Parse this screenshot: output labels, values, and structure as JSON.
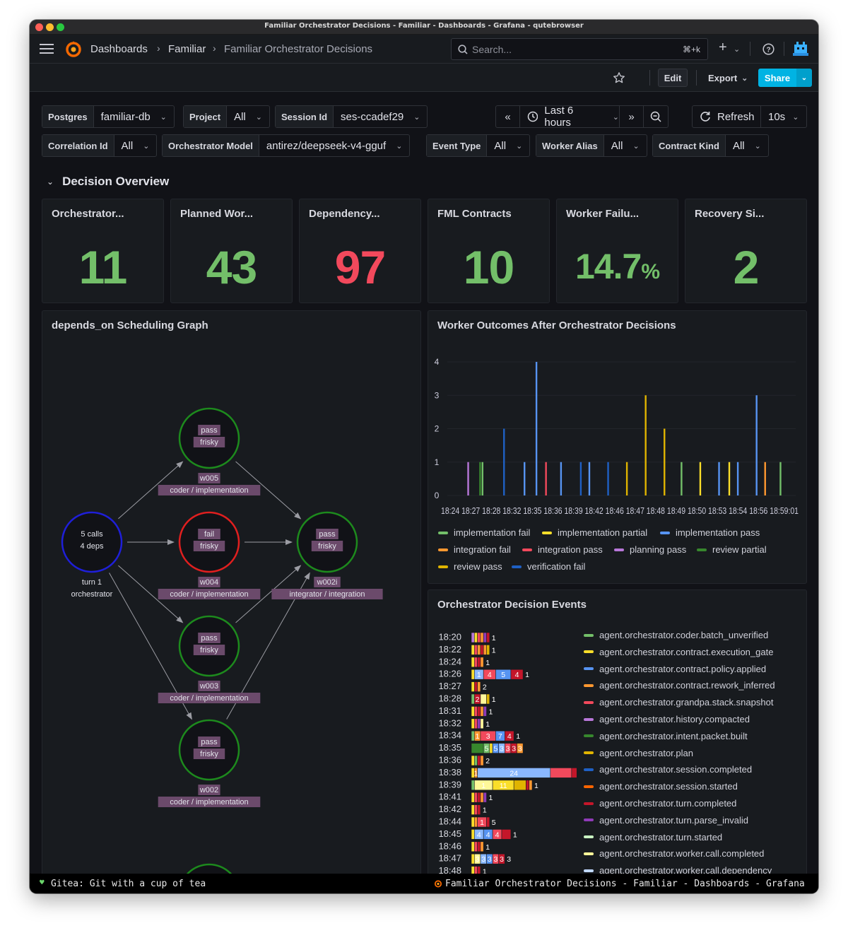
{
  "window": {
    "title": "Familiar Orchestrator Decisions - Familiar - Dashboards - Grafana - qutebrowser"
  },
  "nav": {
    "breadcrumbs": [
      "Dashboards",
      "Familiar",
      "Familiar Orchestrator Decisions"
    ],
    "search_placeholder": "Search...",
    "search_shortcut": "⌘+k",
    "plus": "+"
  },
  "toolbar": {
    "edit": "Edit",
    "export": "Export",
    "share": "Share"
  },
  "variables": [
    {
      "label": "Postgres",
      "value": "familiar-db"
    },
    {
      "label": "Project",
      "value": "All"
    },
    {
      "label": "Session Id",
      "value": "ses-ccadef29"
    },
    {
      "label": "Correlation Id",
      "value": "All"
    },
    {
      "label": "Orchestrator Model",
      "value": "antirez/deepseek-v4-gguf"
    },
    {
      "label": "Event Type",
      "value": "All"
    },
    {
      "label": "Worker Alias",
      "value": "All"
    },
    {
      "label": "Contract Kind",
      "value": "All"
    }
  ],
  "time": {
    "range": "Last 6 hours",
    "refresh": "Refresh",
    "interval": "10s"
  },
  "row_title": "Decision Overview",
  "stats": [
    {
      "title": "Orchestrator...",
      "value": "11",
      "unit": "",
      "color": "#73bf69"
    },
    {
      "title": "Planned Wor...",
      "value": "43",
      "unit": "",
      "color": "#73bf69"
    },
    {
      "title": "Dependency...",
      "value": "97",
      "unit": "",
      "color": "#f2495c"
    },
    {
      "title": "FML Contracts",
      "value": "10",
      "unit": "",
      "color": "#73bf69"
    },
    {
      "title": "Worker Failu...",
      "value": "14.7",
      "unit": "%",
      "color": "#73bf69"
    },
    {
      "title": "Recovery Si...",
      "value": "2",
      "unit": "",
      "color": "#73bf69"
    }
  ],
  "graph": {
    "title": "depends_on Scheduling Graph",
    "nodes": [
      {
        "id": "orch",
        "lines": [
          "5 calls",
          "4 deps"
        ],
        "caption": [
          "turn 1",
          "orchestrator"
        ],
        "ring": "#1f1fd8"
      },
      {
        "id": "w005",
        "lines": [
          "pass",
          "frisky"
        ],
        "caption": [
          "w005",
          "coder / implementation"
        ],
        "ring": "#1d8a1d"
      },
      {
        "id": "w004",
        "lines": [
          "fail",
          "frisky"
        ],
        "caption": [
          "w004",
          "coder / implementation"
        ],
        "ring": "#e01f1f"
      },
      {
        "id": "w002i",
        "lines": [
          "pass",
          "frisky"
        ],
        "caption": [
          "w002i",
          "integrator / integration"
        ],
        "ring": "#1d8a1d"
      },
      {
        "id": "w003",
        "lines": [
          "pass",
          "frisky"
        ],
        "caption": [
          "w003",
          "coder / implementation"
        ],
        "ring": "#1d8a1d"
      },
      {
        "id": "w002",
        "lines": [
          "pass",
          "frisky"
        ],
        "caption": [
          "w002",
          "coder / implementation"
        ],
        "ring": "#1d8a1d"
      }
    ]
  },
  "outcomes": {
    "title": "Worker Outcomes After Orchestrator Decisions",
    "chart_data": {
      "type": "bar",
      "yticks": [
        "0",
        "1",
        "2",
        "3",
        "4"
      ],
      "ylim": [
        0,
        4
      ],
      "xticks_text": "18:24 18:27 18:28 18:32 18:35 18:36 18:39 18:42 18:46 18:47 18:48 18:49 18:50 18:53 18:54 18:56 18:59:01",
      "xtick_labels": [
        "18:24",
        "18:27",
        "18:28",
        "18:32",
        "18:35",
        "18:36",
        "18:39",
        "18:42",
        "18:46",
        "18:47",
        "18:48",
        "18:49",
        "18:50",
        "18:53",
        "18:54",
        "18:56",
        "18:59:01"
      ],
      "series": [
        {
          "name": "implementation fail",
          "color": "#73bf69"
        },
        {
          "name": "implementation partial",
          "color": "#fade2a"
        },
        {
          "name": "implementation pass",
          "color": "#5794f2"
        },
        {
          "name": "integration fail",
          "color": "#ff9830"
        },
        {
          "name": "integration pass",
          "color": "#f2495c"
        },
        {
          "name": "planning pass",
          "color": "#b877d9"
        },
        {
          "name": "review partial",
          "color": "#37872d"
        },
        {
          "name": "review pass",
          "color": "#e0b400"
        },
        {
          "name": "verification fail",
          "color": "#1f60c4"
        }
      ],
      "bars": [
        {
          "t": 0.04,
          "v": 1,
          "c": "#b877d9"
        },
        {
          "t": 0.075,
          "v": 1,
          "c": "#37872d"
        },
        {
          "t": 0.082,
          "v": 1,
          "c": "#73bf69"
        },
        {
          "t": 0.145,
          "v": 2,
          "c": "#1f60c4"
        },
        {
          "t": 0.205,
          "v": 1,
          "c": "#5794f2"
        },
        {
          "t": 0.24,
          "v": 4,
          "c": "#5794f2"
        },
        {
          "t": 0.268,
          "v": 1,
          "c": "#f2495c"
        },
        {
          "t": 0.312,
          "v": 1,
          "c": "#5794f2"
        },
        {
          "t": 0.37,
          "v": 1,
          "c": "#1f60c4"
        },
        {
          "t": 0.395,
          "v": 1,
          "c": "#5794f2"
        },
        {
          "t": 0.45,
          "v": 1,
          "c": "#1f60c4"
        },
        {
          "t": 0.505,
          "v": 1,
          "c": "#e0b400"
        },
        {
          "t": 0.56,
          "v": 3,
          "c": "#e0b400"
        },
        {
          "t": 0.615,
          "v": 2,
          "c": "#e0b400"
        },
        {
          "t": 0.665,
          "v": 1,
          "c": "#73bf69"
        },
        {
          "t": 0.72,
          "v": 1,
          "c": "#fade2a"
        },
        {
          "t": 0.775,
          "v": 1,
          "c": "#5794f2"
        },
        {
          "t": 0.805,
          "v": 1,
          "c": "#fade2a"
        },
        {
          "t": 0.83,
          "v": 1,
          "c": "#5794f2"
        },
        {
          "t": 0.885,
          "v": 3,
          "c": "#5794f2"
        },
        {
          "t": 0.91,
          "v": 1,
          "c": "#ff9830"
        },
        {
          "t": 0.955,
          "v": 1,
          "c": "#73bf69"
        }
      ]
    }
  },
  "events": {
    "title": "Orchestrator Decision Events",
    "chart_data": {
      "type": "bar",
      "rows": [
        {
          "time": "18:20",
          "segs": [
            [
              "#b877d9",
              1
            ],
            [
              "#fade2a",
              1
            ],
            [
              "#f2495c",
              1
            ],
            [
              "#ff9830",
              1
            ],
            [
              "#8f3bb8",
              1
            ],
            [
              "#c4162a",
              1
            ]
          ],
          "labels": [],
          "total": "1"
        },
        {
          "time": "18:22",
          "segs": [
            [
              "#fade2a",
              1
            ],
            [
              "#f2495c",
              1
            ],
            [
              "#ff9830",
              1
            ],
            [
              "#c4162a",
              1
            ],
            [
              "#ff9830",
              1
            ],
            [
              "#e0b400",
              1
            ]
          ],
          "labels": [],
          "total": "1"
        },
        {
          "time": "18:24",
          "segs": [
            [
              "#fade2a",
              1
            ],
            [
              "#f2495c",
              1
            ],
            [
              "#c4162a",
              1
            ],
            [
              "#ff9830",
              1
            ]
          ],
          "labels": [],
          "total": "1"
        },
        {
          "time": "18:26",
          "segs": [
            [
              "#fade2a",
              1
            ],
            [
              "#8ab8ff",
              3
            ],
            [
              "#f2495c",
              4
            ],
            [
              "#5794f2",
              5
            ],
            [
              "#c4162a",
              4
            ]
          ],
          "labels": [
            "",
            "1",
            "4",
            "5",
            "4"
          ],
          "total": "1"
        },
        {
          "time": "18:27",
          "segs": [
            [
              "#fade2a",
              1
            ],
            [
              "#c4162a",
              1
            ],
            [
              "#ff9830",
              1
            ]
          ],
          "labels": [],
          "total": "2"
        },
        {
          "time": "18:28",
          "segs": [
            [
              "#73bf69",
              1
            ],
            [
              "#c4162a",
              2
            ],
            [
              "#fff899",
              2
            ],
            [
              "#e0b400",
              1
            ]
          ],
          "labels": [
            "",
            "2",
            "",
            ""
          ],
          "total": "1"
        },
        {
          "time": "18:31",
          "segs": [
            [
              "#fade2a",
              1
            ],
            [
              "#f2495c",
              1
            ],
            [
              "#c4162a",
              1
            ],
            [
              "#ff9830",
              1
            ],
            [
              "#8f3bb8",
              1
            ]
          ],
          "labels": [],
          "total": "1"
        },
        {
          "time": "18:32",
          "segs": [
            [
              "#fade2a",
              1
            ],
            [
              "#f2495c",
              1
            ],
            [
              "#8f3bb8",
              1
            ],
            [
              "#fff899",
              1
            ]
          ],
          "labels": [],
          "total": "1"
        },
        {
          "time": "18:34",
          "segs": [
            [
              "#73bf69",
              1
            ],
            [
              "#ff9830",
              2
            ],
            [
              "#f2495c",
              5
            ],
            [
              "#5794f2",
              3
            ],
            [
              "#c4162a",
              3
            ]
          ],
          "labels": [
            "",
            "1",
            "3",
            "7",
            "4"
          ],
          "total": "1"
        },
        {
          "time": "18:35",
          "segs": [
            [
              "#37872d",
              4
            ],
            [
              "#73bf69",
              2
            ],
            [
              "#fade2a",
              1
            ],
            [
              "#5794f2",
              2
            ],
            [
              "#8ab8ff",
              2
            ],
            [
              "#f2495c",
              2
            ],
            [
              "#c4162a",
              2
            ],
            [
              "#ff9830",
              2
            ]
          ],
          "labels": [
            "",
            "5",
            "",
            "5",
            "3",
            "3",
            "3",
            "3"
          ],
          "total": ""
        },
        {
          "time": "18:36",
          "segs": [
            [
              "#fade2a",
              1
            ],
            [
              "#73bf69",
              1
            ],
            [
              "#c4162a",
              1
            ],
            [
              "#ff9830",
              1
            ]
          ],
          "labels": [],
          "total": "2"
        },
        {
          "time": "18:38",
          "segs": [
            [
              "#fade2a",
              1
            ],
            [
              "#ff9830",
              1
            ],
            [
              "#8ab8ff",
              24
            ],
            [
              "#f2495c",
              7
            ],
            [
              "#c4162a",
              2
            ],
            [
              "#e0b400",
              1
            ]
          ],
          "labels": [
            "",
            "1",
            "24",
            "",
            "",
            ""
          ],
          "total": "1"
        },
        {
          "time": "18:39",
          "segs": [
            [
              "#73bf69",
              1
            ],
            [
              "#fff899",
              6
            ],
            [
              "#fade2a",
              7
            ],
            [
              "#e0b400",
              4
            ],
            [
              "#c4162a",
              1
            ],
            [
              "#ff9830",
              1
            ]
          ],
          "labels": [
            "",
            "1",
            "11",
            "",
            "",
            ""
          ],
          "total": "1"
        },
        {
          "time": "18:41",
          "segs": [
            [
              "#fade2a",
              1
            ],
            [
              "#f2495c",
              1
            ],
            [
              "#c4162a",
              1
            ],
            [
              "#ff9830",
              1
            ],
            [
              "#8f3bb8",
              1
            ]
          ],
          "labels": [],
          "total": "1"
        },
        {
          "time": "18:42",
          "segs": [
            [
              "#fade2a",
              1
            ],
            [
              "#f2495c",
              1
            ],
            [
              "#c4162a",
              1
            ]
          ],
          "labels": [],
          "total": "1"
        },
        {
          "time": "18:44",
          "segs": [
            [
              "#fade2a",
              1
            ],
            [
              "#ff9830",
              1
            ],
            [
              "#f2495c",
              3
            ],
            [
              "#c4162a",
              1
            ]
          ],
          "labels": [
            "",
            "",
            "1",
            ""
          ],
          "total": "5"
        },
        {
          "time": "18:45",
          "segs": [
            [
              "#fade2a",
              1
            ],
            [
              "#8ab8ff",
              3
            ],
            [
              "#5794f2",
              3
            ],
            [
              "#f2495c",
              3
            ],
            [
              "#c4162a",
              3
            ]
          ],
          "labels": [
            "",
            "4",
            "4",
            "4",
            ""
          ],
          "total": "1"
        },
        {
          "time": "18:46",
          "segs": [
            [
              "#fade2a",
              1
            ],
            [
              "#f2495c",
              1
            ],
            [
              "#c4162a",
              1
            ],
            [
              "#ff9830",
              1
            ]
          ],
          "labels": [],
          "total": "1"
        },
        {
          "time": "18:47",
          "segs": [
            [
              "#fade2a",
              1
            ],
            [
              "#fff899",
              2
            ],
            [
              "#8ab8ff",
              2
            ],
            [
              "#5794f2",
              2
            ],
            [
              "#f2495c",
              2
            ],
            [
              "#c4162a",
              2
            ]
          ],
          "labels": [
            "",
            "3",
            "3",
            "3",
            "3",
            "3"
          ],
          "total": "3"
        },
        {
          "time": "18:48",
          "segs": [
            [
              "#fade2a",
              1
            ],
            [
              "#f2495c",
              1
            ],
            [
              "#c4162a",
              1
            ]
          ],
          "labels": [],
          "total": "1"
        }
      ],
      "legend": [
        {
          "name": "agent.orchestrator.coder.batch_unverified",
          "color": "#73bf69"
        },
        {
          "name": "agent.orchestrator.contract.execution_gate",
          "color": "#fade2a"
        },
        {
          "name": "agent.orchestrator.contract.policy.applied",
          "color": "#5794f2"
        },
        {
          "name": "agent.orchestrator.contract.rework_inferred",
          "color": "#ff9830"
        },
        {
          "name": "agent.orchestrator.grandpa.stack.snapshot",
          "color": "#f2495c"
        },
        {
          "name": "agent.orchestrator.history.compacted",
          "color": "#b877d9"
        },
        {
          "name": "agent.orchestrator.intent.packet.built",
          "color": "#37872d"
        },
        {
          "name": "agent.orchestrator.plan",
          "color": "#e0b400"
        },
        {
          "name": "agent.orchestrator.session.completed",
          "color": "#1f60c4"
        },
        {
          "name": "agent.orchestrator.session.started",
          "color": "#fa6400"
        },
        {
          "name": "agent.orchestrator.turn.completed",
          "color": "#c4162a"
        },
        {
          "name": "agent.orchestrator.turn.parse_invalid",
          "color": "#8f3bb8"
        },
        {
          "name": "agent.orchestrator.turn.started",
          "color": "#c8f2c2"
        },
        {
          "name": "agent.orchestrator.worker.call.completed",
          "color": "#fff899"
        },
        {
          "name": "agent.orchestrator.worker.call.dependency",
          "color": "#c0d8ff"
        }
      ]
    }
  },
  "statusbar": {
    "left": "Gitea: Git with a cup of tea",
    "right": "Familiar Orchestrator Decisions - Familiar - Dashboards - Grafana"
  }
}
